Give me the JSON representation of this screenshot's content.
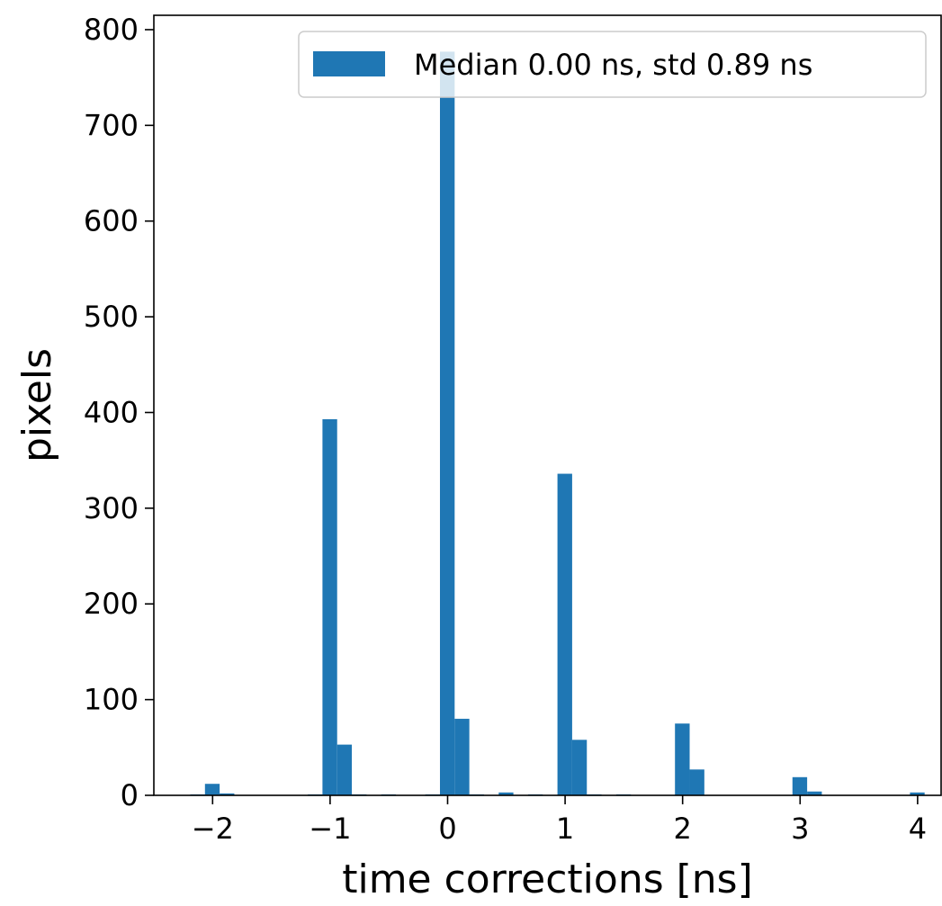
{
  "chart_data": {
    "type": "bar",
    "title": "",
    "xlabel": "time corrections [ns]",
    "ylabel": "pixels",
    "xlim": [
      -2.5,
      4.2
    ],
    "ylim": [
      0,
      815
    ],
    "bin_width": 0.125,
    "xticks": [
      -2,
      -1,
      0,
      1,
      2,
      3,
      4
    ],
    "xtick_labels": [
      "−2",
      "−1",
      "0",
      "1",
      "2",
      "3",
      "4"
    ],
    "yticks": [
      0,
      100,
      200,
      300,
      400,
      500,
      600,
      700,
      800
    ],
    "ytick_labels": [
      "0",
      "100",
      "200",
      "300",
      "400",
      "500",
      "600",
      "700",
      "800"
    ],
    "grid": false,
    "legend_position": "top-right",
    "series": [
      {
        "name": "Median 0.00 ns, std 0.89 ns",
        "color": "#1f77b4",
        "bins": [
          {
            "x0": -2.19,
            "value": 1
          },
          {
            "x0": -2.065,
            "value": 12
          },
          {
            "x0": -1.94,
            "value": 2
          },
          {
            "x0": -1.19,
            "value": 1
          },
          {
            "x0": -1.065,
            "value": 393
          },
          {
            "x0": -0.94,
            "value": 53
          },
          {
            "x0": -0.815,
            "value": 1
          },
          {
            "x0": -0.565,
            "value": 1
          },
          {
            "x0": -0.19,
            "value": 1
          },
          {
            "x0": -0.065,
            "value": 777
          },
          {
            "x0": 0.06,
            "value": 80
          },
          {
            "x0": 0.185,
            "value": 1
          },
          {
            "x0": 0.435,
            "value": 3
          },
          {
            "x0": 0.685,
            "value": 1
          },
          {
            "x0": 0.935,
            "value": 336
          },
          {
            "x0": 1.06,
            "value": 58
          },
          {
            "x0": 1.185,
            "value": 1
          },
          {
            "x0": 1.435,
            "value": 1
          },
          {
            "x0": 1.935,
            "value": 75
          },
          {
            "x0": 2.06,
            "value": 27
          },
          {
            "x0": 2.935,
            "value": 19
          },
          {
            "x0": 3.06,
            "value": 4
          },
          {
            "x0": 3.935,
            "value": 3
          }
        ]
      }
    ]
  }
}
